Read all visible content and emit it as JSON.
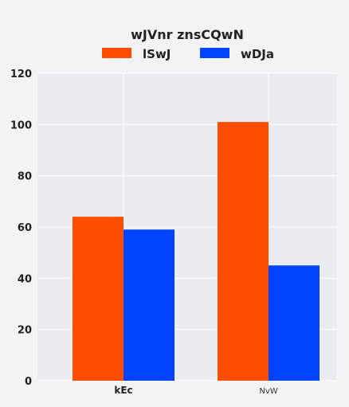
{
  "chart_data": {
    "type": "bar",
    "title": "wJVnr znsCQwN",
    "categories": [
      "kEc",
      "NvW"
    ],
    "series": [
      {
        "name": "lSwJ",
        "values": [
          64,
          101
        ],
        "color": "#ff4d00"
      },
      {
        "name": "wDJa",
        "values": [
          59,
          45
        ],
        "color": "#0044ff"
      }
    ],
    "xlabel": "",
    "ylabel": "",
    "ylim": [
      0,
      120
    ],
    "yticks": [
      0,
      20,
      40,
      60,
      80,
      100,
      120
    ],
    "grid": true,
    "legend_position": "top-center",
    "background": "#ebebf2"
  }
}
